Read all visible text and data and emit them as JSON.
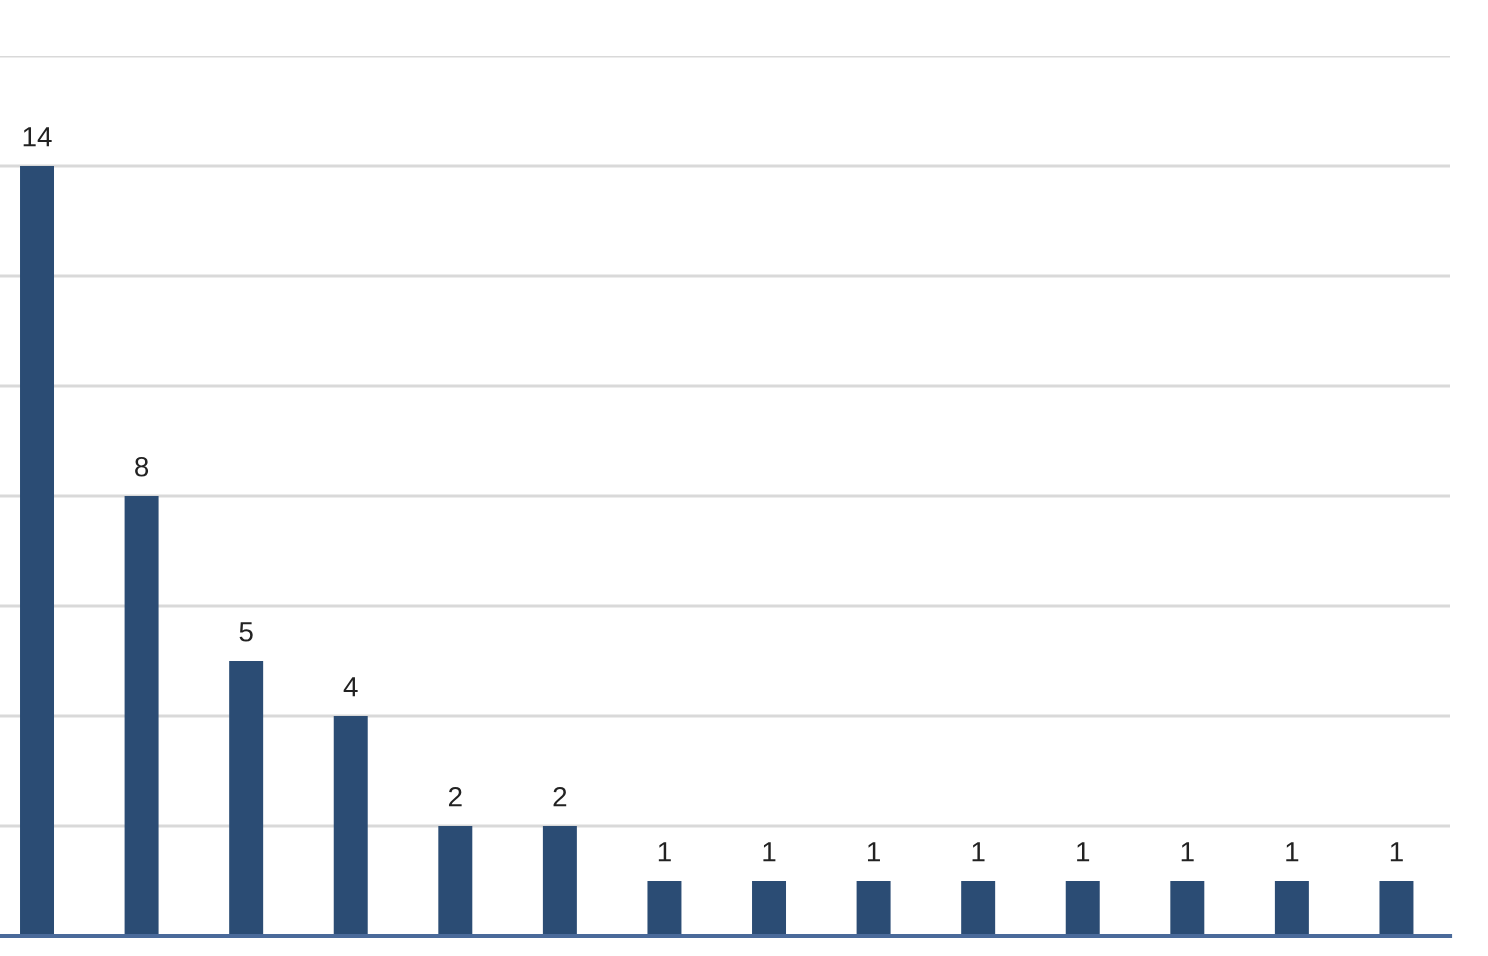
{
  "chart_data": {
    "type": "bar",
    "categories": [
      null,
      null,
      null,
      null,
      null,
      null,
      null,
      null,
      null,
      null,
      null,
      null,
      null,
      null
    ],
    "values": [
      14,
      8,
      5,
      4,
      2,
      2,
      1,
      1,
      1,
      1,
      1,
      1,
      1,
      1
    ],
    "color": "#2b4c74",
    "ylim": [
      0,
      16
    ],
    "yticks": [
      {
        "value": 0,
        "label": null
      },
      {
        "value": 2,
        "label": null
      },
      {
        "value": 4,
        "label": null
      },
      {
        "value": 6,
        "label": null
      },
      {
        "value": 8,
        "label": null
      },
      {
        "value": 10,
        "label": null
      },
      {
        "value": 12,
        "label": null
      },
      {
        "value": 14,
        "label": null
      },
      {
        "value": 16,
        "label": null
      }
    ],
    "grid": "y",
    "data_labels": true
  }
}
